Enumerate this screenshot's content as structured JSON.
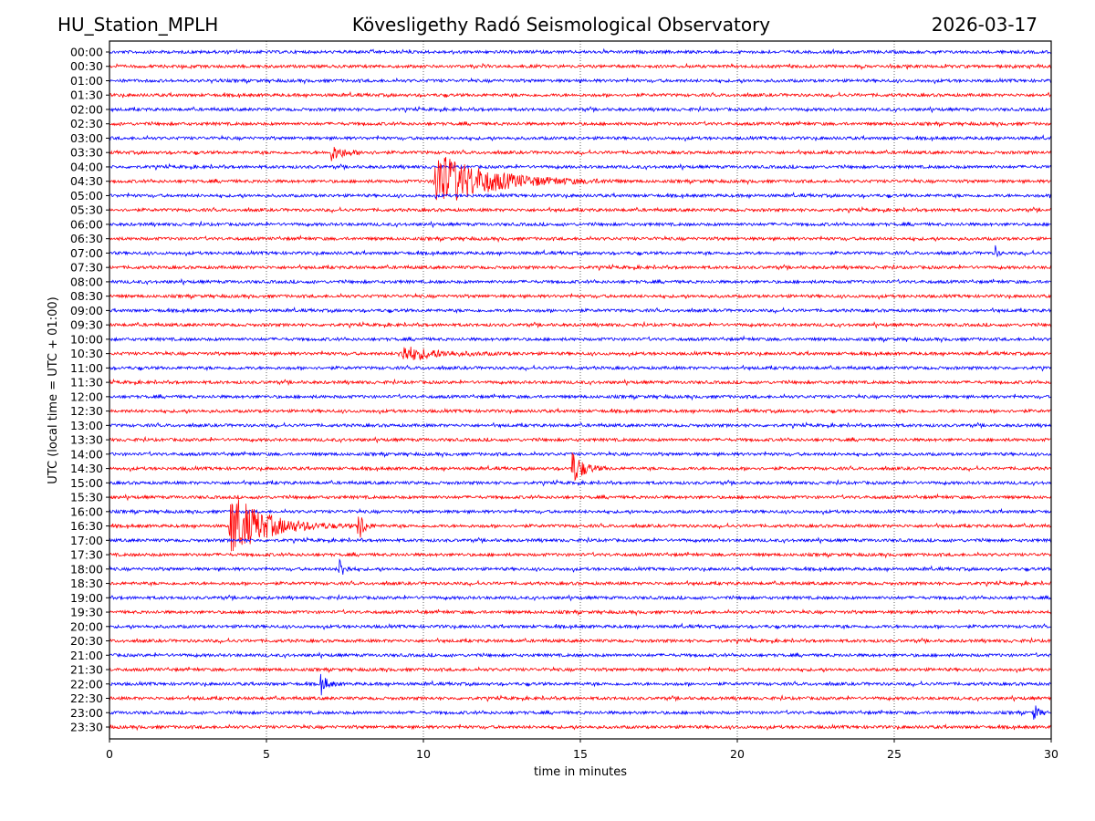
{
  "header": {
    "station": "HU_Station_MPLH",
    "title": "Kövesligethy Radó Seismological Observatory",
    "date": "2026-03-17"
  },
  "chart_data": {
    "type": "line",
    "subtype": "helicorder",
    "xlabel": "time in minutes",
    "ylabel": "UTC (local time = UTC + 01:00)",
    "xlim": [
      0,
      30
    ],
    "x_ticks": [
      "0",
      "5",
      "10",
      "15",
      "20",
      "25",
      "30"
    ],
    "grid": "vertical dotted at x ticks",
    "colors": [
      "#0000ff",
      "#ff0000"
    ],
    "row_labels": [
      "00:00",
      "00:30",
      "01:00",
      "01:30",
      "02:00",
      "02:30",
      "03:00",
      "03:30",
      "04:00",
      "04:30",
      "05:00",
      "05:30",
      "06:00",
      "06:30",
      "07:00",
      "07:30",
      "08:00",
      "08:30",
      "09:00",
      "09:30",
      "10:00",
      "10:30",
      "11:00",
      "11:30",
      "12:00",
      "12:30",
      "13:00",
      "13:30",
      "14:00",
      "14:30",
      "15:00",
      "15:30",
      "16:00",
      "16:30",
      "17:00",
      "17:30",
      "18:00",
      "18:30",
      "19:00",
      "19:30",
      "20:00",
      "20:30",
      "21:00",
      "21:30",
      "22:00",
      "22:30",
      "23:00",
      "23:30"
    ],
    "events": [
      {
        "row": "03:30",
        "start_min": 7.0,
        "duration_min": 1.6,
        "relative_amplitude": 10
      },
      {
        "row": "04:30",
        "start_min": 10.3,
        "duration_min": 6.0,
        "relative_amplitude": 36
      },
      {
        "row": "07:00",
        "start_min": 28.2,
        "duration_min": 0.3,
        "relative_amplitude": 10
      },
      {
        "row": "10:30",
        "start_min": 9.2,
        "duration_min": 4.0,
        "relative_amplitude": 10
      },
      {
        "row": "14:30",
        "start_min": 14.7,
        "duration_min": 1.3,
        "relative_amplitude": 22
      },
      {
        "row": "16:30",
        "start_min": 3.8,
        "duration_min": 4.0,
        "relative_amplitude": 40
      },
      {
        "row": "16:30",
        "start_min": 7.9,
        "duration_min": 0.6,
        "relative_amplitude": 26
      },
      {
        "row": "18:00",
        "start_min": 7.3,
        "duration_min": 0.6,
        "relative_amplitude": 15
      },
      {
        "row": "22:00",
        "start_min": 6.7,
        "duration_min": 0.7,
        "relative_amplitude": 15
      },
      {
        "row": "23:00",
        "start_min": 29.4,
        "duration_min": 0.5,
        "relative_amplitude": 15
      }
    ]
  }
}
